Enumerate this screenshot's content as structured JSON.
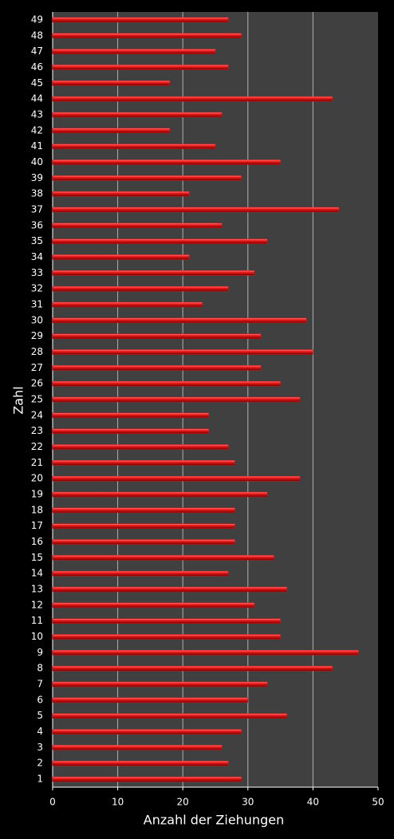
{
  "chart_data": {
    "type": "bar",
    "orientation": "horizontal",
    "categories": [
      "1",
      "2",
      "3",
      "4",
      "5",
      "6",
      "7",
      "8",
      "9",
      "10",
      "11",
      "12",
      "13",
      "14",
      "15",
      "16",
      "17",
      "18",
      "19",
      "20",
      "21",
      "22",
      "23",
      "24",
      "25",
      "26",
      "27",
      "28",
      "29",
      "30",
      "31",
      "32",
      "33",
      "34",
      "35",
      "36",
      "37",
      "38",
      "39",
      "40",
      "41",
      "42",
      "43",
      "44",
      "45",
      "46",
      "47",
      "48",
      "49"
    ],
    "values": [
      29,
      27,
      26,
      29,
      36,
      30,
      33,
      43,
      47,
      35,
      35,
      31,
      36,
      27,
      34,
      28,
      28,
      28,
      33,
      38,
      28,
      27,
      24,
      24,
      38,
      35,
      32,
      40,
      32,
      39,
      23,
      27,
      31,
      21,
      33,
      26,
      44,
      21,
      29,
      35,
      25,
      18,
      26,
      43,
      18,
      27,
      25,
      29,
      27
    ],
    "color": "#e01010",
    "xlabel": "Anzahl der Ziehungen",
    "ylabel": "Zahl",
    "xlim": [
      0,
      50
    ],
    "xticks": [
      0,
      10,
      20,
      30,
      40,
      50
    ],
    "grid": true
  }
}
